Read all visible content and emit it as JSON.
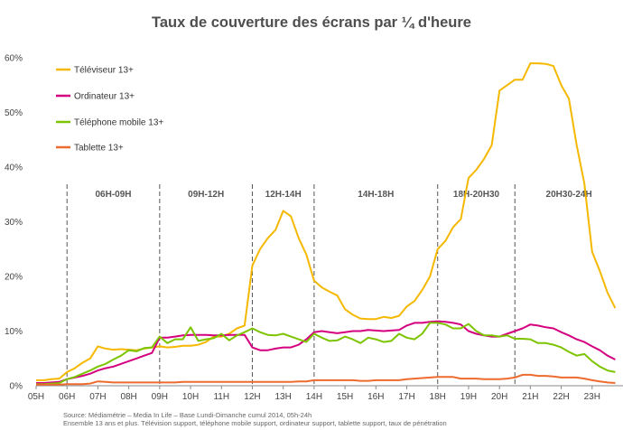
{
  "chart_data": {
    "type": "line",
    "title": "Taux de couverture des écrans par ¼ d'heure",
    "xlabel": "",
    "ylabel": "",
    "ylim": [
      0,
      60
    ],
    "yticks": [
      "0%",
      "10%",
      "20%",
      "30%",
      "40%",
      "50%",
      "60%"
    ],
    "categories": [
      "05H",
      "06H",
      "07H",
      "08H",
      "09H",
      "10H",
      "11H",
      "12H",
      "13H",
      "14H",
      "15H",
      "16H",
      "17H",
      "18H",
      "19H",
      "20H",
      "21H",
      "22H",
      "23H"
    ],
    "grid": false,
    "legend_position": "top-left",
    "periods": [
      {
        "label": "06H-09H",
        "start": 1,
        "end": 4
      },
      {
        "label": "09H-12H",
        "start": 4,
        "end": 7
      },
      {
        "label": "12H-14H",
        "start": 7,
        "end": 9
      },
      {
        "label": "14H-18H",
        "start": 9,
        "end": 13
      },
      {
        "label": "18H-20H30",
        "start": 13,
        "end": 15.5
      },
      {
        "label": "20H30-24H",
        "start": 15.5,
        "end": 19
      }
    ],
    "series": [
      {
        "name": "Téléviseur 13+",
        "color": "#f5b800",
        "x": [
          0,
          0.25,
          0.5,
          0.75,
          1,
          1.25,
          1.5,
          1.75,
          2,
          2.25,
          2.5,
          2.75,
          3,
          3.25,
          3.5,
          3.75,
          4,
          4.25,
          4.5,
          4.75,
          5,
          5.25,
          5.5,
          5.75,
          6,
          6.25,
          6.5,
          6.75,
          7,
          7.25,
          7.5,
          7.75,
          8,
          8.25,
          8.5,
          8.75,
          9,
          9.25,
          9.5,
          9.75,
          10,
          10.25,
          10.5,
          10.75,
          11,
          11.25,
          11.5,
          11.75,
          12,
          12.25,
          12.5,
          12.75,
          13,
          13.25,
          13.5,
          13.75,
          14,
          14.25,
          14.5,
          14.75,
          15,
          15.25,
          15.5,
          15.75,
          16,
          16.25,
          16.5,
          16.75,
          17,
          17.25,
          17.5,
          17.75,
          18,
          18.25,
          18.5,
          18.75
        ],
        "values": [
          1,
          1,
          1.2,
          1.3,
          2.5,
          3.2,
          4.2,
          5,
          7.2,
          6.8,
          6.6,
          6.7,
          6.6,
          6.5,
          6.8,
          7,
          7.2,
          7,
          7.1,
          7.3,
          7.3,
          7.5,
          8,
          9,
          9,
          9.5,
          10.5,
          11,
          22,
          25,
          27,
          28.5,
          32,
          31,
          27,
          24,
          19.2,
          18,
          17.2,
          16.5,
          14,
          13,
          12.3,
          12.2,
          12.2,
          12.6,
          12.4,
          12.8,
          14.5,
          15.5,
          17.5,
          20,
          25,
          26.5,
          29,
          30.5,
          38,
          39.5,
          41.5,
          44,
          54,
          55,
          56,
          56,
          59,
          59,
          58.9,
          58.5,
          55,
          52.5,
          44,
          37,
          24.5,
          21,
          17,
          14.2
        ]
      },
      {
        "name": "Ordinateur 13+",
        "color": "#d4007f",
        "x": [
          0,
          0.25,
          0.5,
          0.75,
          1,
          1.25,
          1.5,
          1.75,
          2,
          2.25,
          2.5,
          2.75,
          3,
          3.25,
          3.5,
          3.75,
          4,
          4.25,
          4.5,
          4.75,
          5,
          5.25,
          5.5,
          5.75,
          6,
          6.25,
          6.5,
          6.75,
          7,
          7.25,
          7.5,
          7.75,
          8,
          8.25,
          8.5,
          8.75,
          9,
          9.25,
          9.5,
          9.75,
          10,
          10.25,
          10.5,
          10.75,
          11,
          11.25,
          11.5,
          11.75,
          12,
          12.25,
          12.5,
          12.75,
          13,
          13.25,
          13.5,
          13.75,
          14,
          14.25,
          14.5,
          14.75,
          15,
          15.25,
          15.5,
          15.75,
          16,
          16.25,
          16.5,
          16.75,
          17,
          17.25,
          17.5,
          17.75,
          18,
          18.25,
          18.5,
          18.75
        ],
        "values": [
          0.5,
          0.5,
          0.6,
          0.7,
          1.2,
          1.5,
          1.8,
          2.2,
          2.8,
          3.2,
          3.5,
          4,
          4.5,
          5,
          5.5,
          6,
          8.8,
          8.8,
          9,
          9.2,
          9.3,
          9.3,
          9.3,
          9.2,
          9.2,
          9.3,
          9.3,
          9.3,
          7,
          6.5,
          6.5,
          6.8,
          7,
          7,
          7.5,
          8.5,
          9.8,
          10,
          9.8,
          9.6,
          9.8,
          10,
          10,
          10.2,
          10.1,
          10,
          10.1,
          10.2,
          11,
          11.5,
          11.5,
          11.7,
          11.8,
          11.7,
          11.5,
          11.2,
          10,
          9.5,
          9.2,
          9,
          9,
          9.5,
          10,
          10.5,
          11.2,
          11,
          10.7,
          10.5,
          9.8,
          9.2,
          8.5,
          8,
          7.2,
          6.5,
          5.5,
          4.8
        ]
      },
      {
        "name": "Téléphone mobile 13+",
        "color": "#7dc400",
        "x": [
          0,
          0.25,
          0.5,
          0.75,
          1,
          1.25,
          1.5,
          1.75,
          2,
          2.25,
          2.5,
          2.75,
          3,
          3.25,
          3.5,
          3.75,
          4,
          4.25,
          4.5,
          4.75,
          5,
          5.25,
          5.5,
          5.75,
          6,
          6.25,
          6.5,
          6.75,
          7,
          7.25,
          7.5,
          7.75,
          8,
          8.25,
          8.5,
          8.75,
          9,
          9.25,
          9.5,
          9.75,
          10,
          10.25,
          10.5,
          10.75,
          11,
          11.25,
          11.5,
          11.75,
          12,
          12.25,
          12.5,
          12.75,
          13,
          13.25,
          13.5,
          13.75,
          14,
          14.25,
          14.5,
          14.75,
          15,
          15.25,
          15.5,
          15.75,
          16,
          16.25,
          16.5,
          16.75,
          17,
          17.25,
          17.5,
          17.75,
          18,
          18.25,
          18.5,
          18.75
        ],
        "values": [
          0.3,
          0.3,
          0.4,
          0.5,
          1.2,
          1.6,
          2.2,
          2.8,
          3.5,
          4,
          4.8,
          5.5,
          6.5,
          6.3,
          6.9,
          7,
          9,
          7.8,
          8.5,
          8.5,
          10.7,
          8.2,
          8.5,
          8.7,
          9.5,
          8.3,
          9.2,
          9.8,
          10.5,
          9.8,
          9.3,
          9.2,
          9.5,
          9,
          8.5,
          8,
          9.5,
          8.8,
          8.2,
          8.3,
          9,
          8.5,
          7.8,
          8.8,
          8.5,
          8,
          8.2,
          9.5,
          8.8,
          8.5,
          9.5,
          11.5,
          11.5,
          11.2,
          10.5,
          10.5,
          11.3,
          10,
          9.2,
          9.2,
          9,
          9.2,
          8.6,
          8.6,
          8.5,
          7.8,
          7.8,
          7.5,
          7,
          6.2,
          5.5,
          5.8,
          4.5,
          3.5,
          2.8,
          2.5
        ]
      },
      {
        "name": "Tablette 13+",
        "color": "#ed6b2e",
        "x": [
          0,
          0.25,
          0.5,
          0.75,
          1,
          1.25,
          1.5,
          1.75,
          2,
          2.25,
          2.5,
          2.75,
          3,
          3.25,
          3.5,
          3.75,
          4,
          4.25,
          4.5,
          4.75,
          5,
          5.25,
          5.5,
          5.75,
          6,
          6.25,
          6.5,
          6.75,
          7,
          7.25,
          7.5,
          7.75,
          8,
          8.25,
          8.5,
          8.75,
          9,
          9.25,
          9.5,
          9.75,
          10,
          10.25,
          10.5,
          10.75,
          11,
          11.25,
          11.5,
          11.75,
          12,
          12.25,
          12.5,
          12.75,
          13,
          13.25,
          13.5,
          13.75,
          14,
          14.25,
          14.5,
          14.75,
          15,
          15.25,
          15.5,
          15.75,
          16,
          16.25,
          16.5,
          16.75,
          17,
          17.25,
          17.5,
          17.75,
          18,
          18.25,
          18.5,
          18.75
        ],
        "values": [
          0.2,
          0.2,
          0.2,
          0.2,
          0.3,
          0.3,
          0.3,
          0.4,
          0.8,
          0.7,
          0.6,
          0.6,
          0.6,
          0.6,
          0.6,
          0.6,
          0.6,
          0.6,
          0.6,
          0.7,
          0.7,
          0.7,
          0.7,
          0.7,
          0.7,
          0.7,
          0.7,
          0.7,
          0.7,
          0.7,
          0.7,
          0.7,
          0.7,
          0.7,
          0.8,
          0.8,
          1,
          1,
          1,
          1,
          1,
          1,
          0.9,
          0.9,
          1,
          1,
          1,
          1,
          1.2,
          1.3,
          1.4,
          1.5,
          1.6,
          1.6,
          1.6,
          1.3,
          1.3,
          1.3,
          1.2,
          1.2,
          1.2,
          1.3,
          1.5,
          2,
          2,
          1.8,
          1.8,
          1.7,
          1.5,
          1.5,
          1.5,
          1.3,
          1,
          0.8,
          0.6,
          0.5
        ]
      }
    ]
  },
  "source": {
    "line1": "Source: Médiamétrie – Media In Life – Base Lundi-Dimanche cumul 2014, 05h-24h",
    "line2": "Ensemble 13 ans et plus. Télévision support, téléphone mobile support, ordinateur support, tablette support, taux de pénétration"
  }
}
